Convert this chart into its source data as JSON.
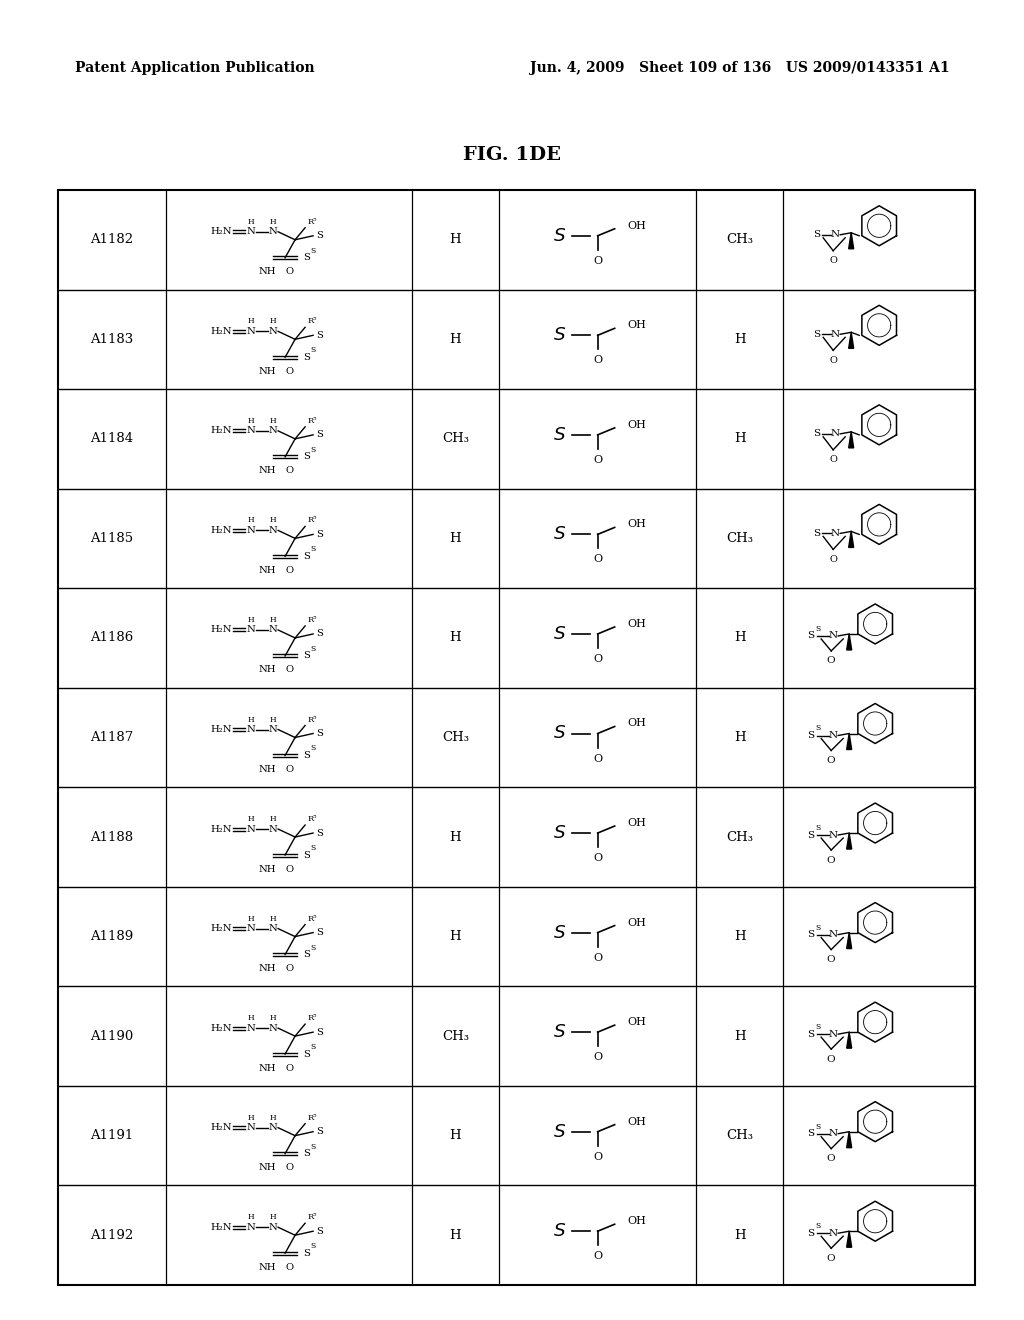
{
  "title_left": "Patent Application Publication",
  "title_right": "Jun. 4, 2009   Sheet 109 of 136   US 2009/0143351 A1",
  "fig_label": "FIG. 1DE",
  "rows": [
    {
      "id": "A1182",
      "r3": "H",
      "r4": "CH₃",
      "btype": 1
    },
    {
      "id": "A1183",
      "r3": "H",
      "r4": "H",
      "btype": 2
    },
    {
      "id": "A1184",
      "r3": "CH₃",
      "r4": "H",
      "btype": 3
    },
    {
      "id": "A1185",
      "r3": "H",
      "r4": "CH₃",
      "btype": 4
    },
    {
      "id": "A1186",
      "r3": "H",
      "r4": "H",
      "btype": 5
    },
    {
      "id": "A1187",
      "r3": "CH₃",
      "r4": "H",
      "btype": 6
    },
    {
      "id": "A1188",
      "r3": "H",
      "r4": "CH₃",
      "btype": 7
    },
    {
      "id": "A1189",
      "r3": "H",
      "r4": "H",
      "btype": 8
    },
    {
      "id": "A1190",
      "r3": "CH₃",
      "r4": "H",
      "btype": 9
    },
    {
      "id": "A1191",
      "r3": "H",
      "r4": "CH₃",
      "btype": 10
    },
    {
      "id": "A1192",
      "r3": "H",
      "r4": "H",
      "btype": 11
    }
  ]
}
